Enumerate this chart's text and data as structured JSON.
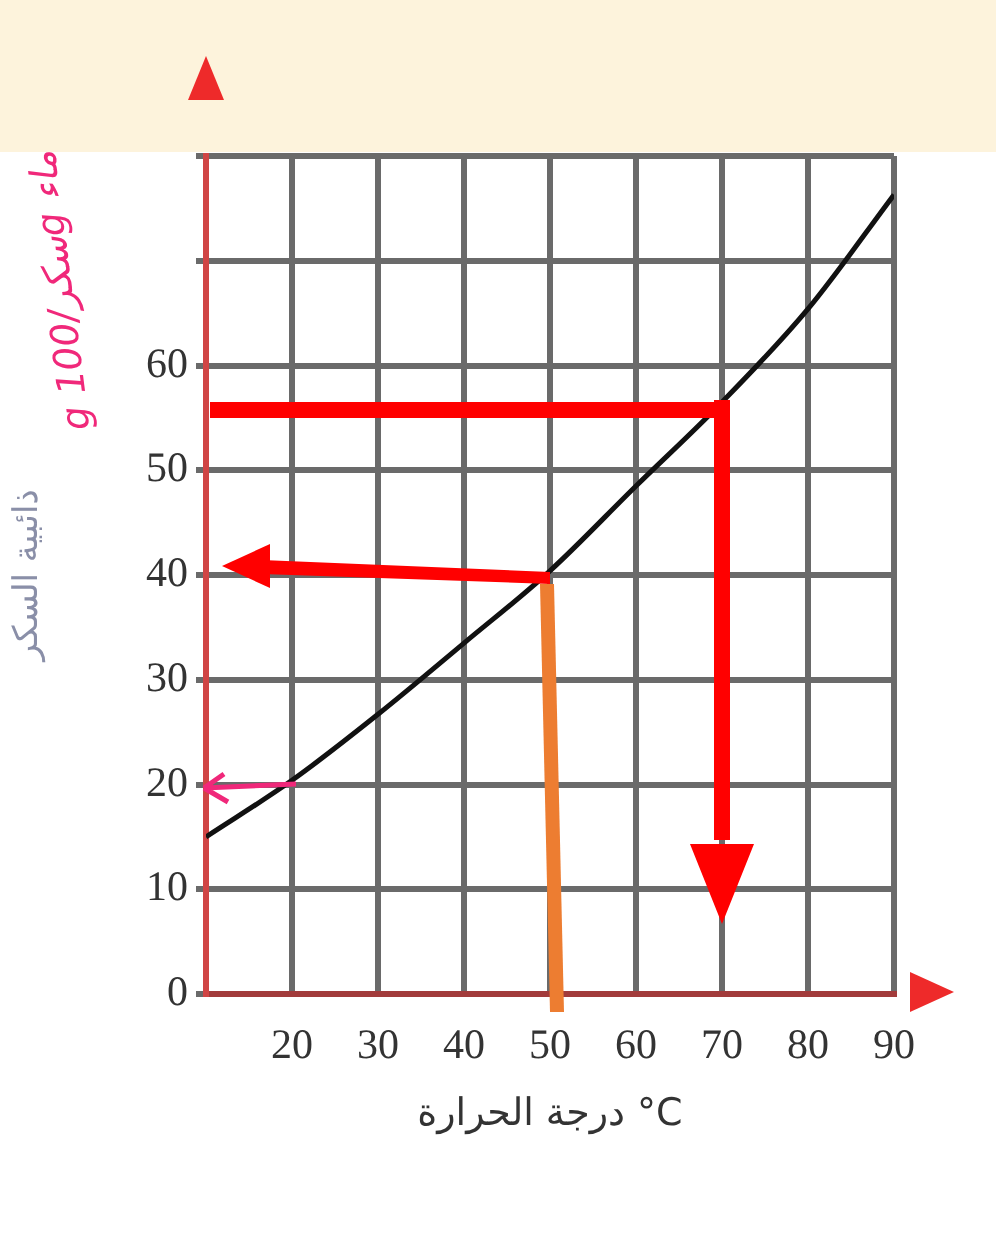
{
  "chart_data": {
    "type": "line",
    "xlabel": "درجة الحرارة °C",
    "ylabel": "ذائبية السكر",
    "x": [
      10,
      20,
      30,
      40,
      50,
      60,
      70,
      80,
      90
    ],
    "series": [
      {
        "color": "#111111",
        "values": [
          15,
          20.4,
          26.7,
          33.5,
          40.4,
          48.5,
          56.5,
          65.4,
          76.3
        ]
      }
    ],
    "xlim": [
      10,
      90
    ],
    "xticks": [
      {
        "value": 10,
        "label": null
      },
      20,
      30,
      40,
      50,
      60,
      70,
      80,
      90
    ],
    "ylim": [
      0,
      80
    ],
    "yticks": [
      0,
      10,
      20,
      30,
      40,
      50,
      60,
      {
        "value": 70,
        "label": null
      },
      {
        "value": 80,
        "label": null
      }
    ],
    "grid": true,
    "legend": false,
    "marker": "none",
    "line_style": "solid",
    "annotations": [
      "g سكر/100g ماء"
    ]
  }
}
